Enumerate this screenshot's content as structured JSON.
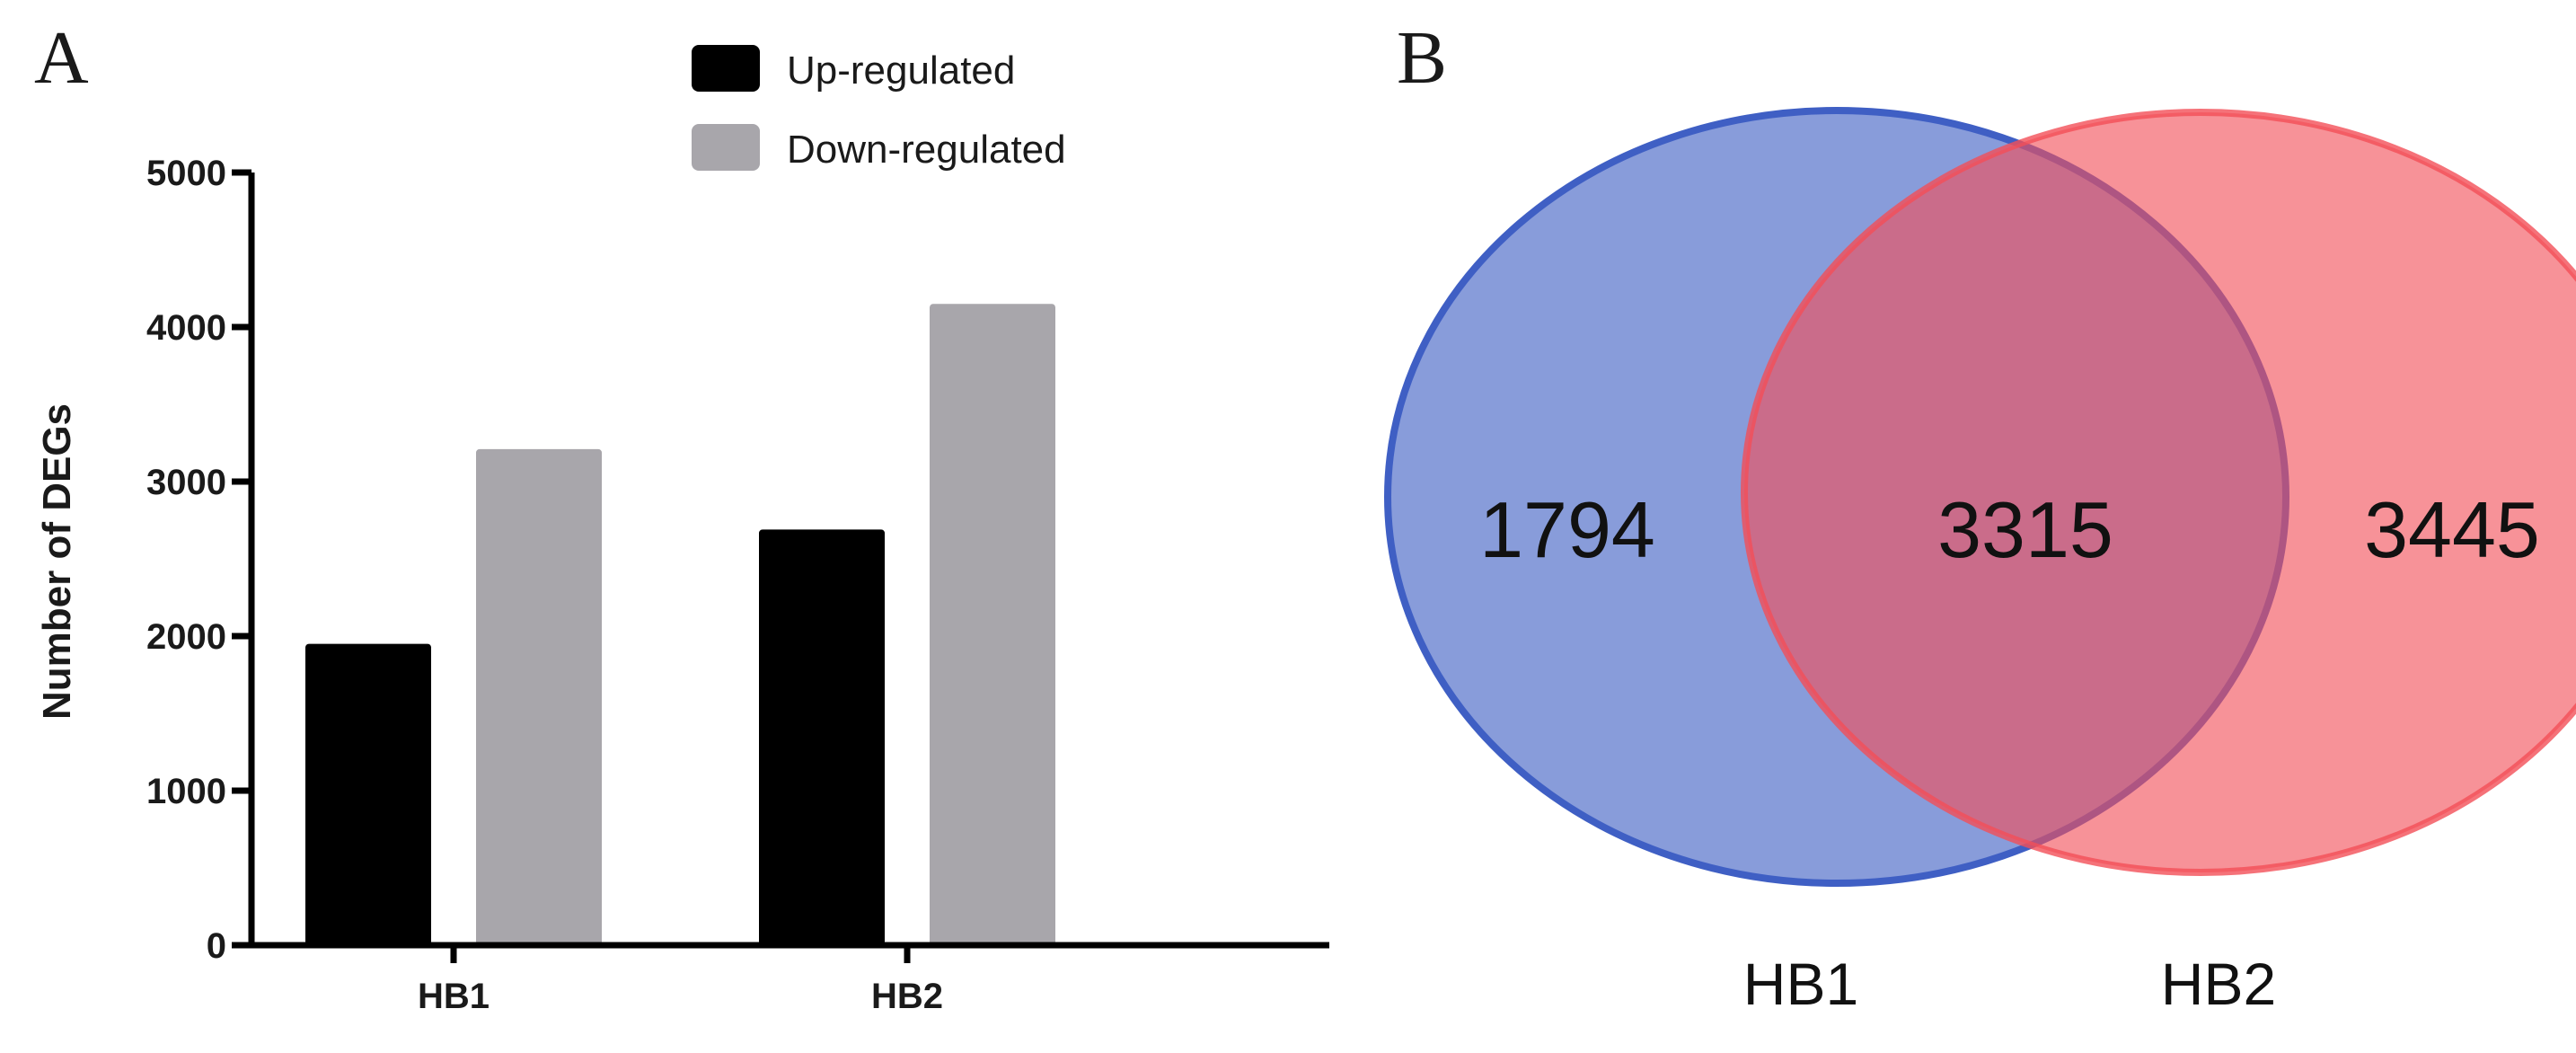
{
  "panels": {
    "bar_label": "A",
    "venn_label": "B"
  },
  "chart_data": [
    {
      "type": "bar",
      "categories": [
        "HB1",
        "HB2"
      ],
      "series": [
        {
          "name": "Up-regulated",
          "values": [
            1950,
            2690
          ],
          "color": "#000000"
        },
        {
          "name": "Down-regulated",
          "values": [
            3210,
            4150
          ],
          "color": "#a8a6ab"
        }
      ],
      "ylabel": "Number of DEGs",
      "ylim": [
        0,
        5000
      ],
      "yticks": [
        0,
        1000,
        2000,
        3000,
        4000,
        5000
      ],
      "legend_position": "top-right",
      "grid": false
    },
    {
      "type": "venn",
      "sets": [
        {
          "name": "HB1",
          "only": "1794",
          "color": "#3f5fc4"
        },
        {
          "name": "HB2",
          "only": "3445",
          "color": "#f24f58"
        }
      ],
      "intersection": "3315"
    }
  ]
}
